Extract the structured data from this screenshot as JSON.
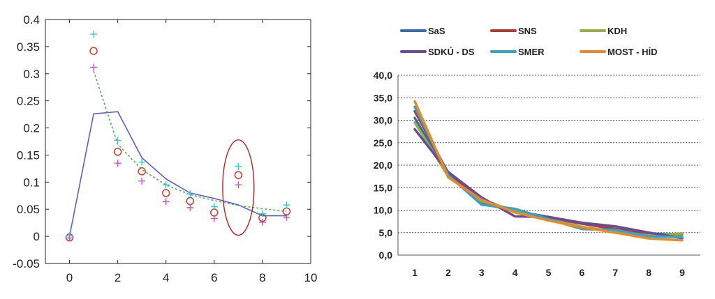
{
  "chart_data": [
    {
      "type": "scatter",
      "title": "",
      "xlabel": "",
      "ylabel": "",
      "xlim": [
        -1,
        10
      ],
      "ylim": [
        -0.05,
        0.4
      ],
      "xticks": [
        "0",
        "2",
        "4",
        "6",
        "8",
        "10"
      ],
      "yticks": [
        "-0.05",
        "0",
        "0.05",
        "0.1",
        "0.15",
        "0.2",
        "0.25",
        "0.3",
        "0.35",
        "0.4"
      ],
      "grid": false,
      "colors": {
        "solid": "#5a5fd0",
        "dashed": "#44aa44",
        "circle": "#cc3b2c",
        "plus_cyan": "#33cccc",
        "plus_magenta": "#d24ad2",
        "ellipse": "#b22222"
      },
      "series": [
        {
          "style": "solid-line",
          "x": [
            0,
            1,
            2,
            3,
            4,
            5,
            6,
            7,
            8,
            9
          ],
          "y": [
            0,
            0.226,
            0.23,
            0.145,
            0.106,
            0.08,
            0.07,
            0.058,
            0.038,
            0.038
          ]
        },
        {
          "style": "dashed-line",
          "x": [
            1,
            2,
            3,
            4,
            5,
            6,
            7,
            8,
            9
          ],
          "y": [
            0.305,
            0.17,
            0.123,
            0.095,
            0.077,
            0.066,
            0.057,
            0.051,
            0.046
          ]
        },
        {
          "style": "circle",
          "x": [
            0,
            1,
            2,
            3,
            4,
            5,
            6,
            7,
            8,
            9
          ],
          "y": [
            -0.002,
            0.342,
            0.156,
            0.12,
            0.08,
            0.065,
            0.044,
            0.113,
            0.034,
            0.046
          ]
        },
        {
          "style": "plus-cyan",
          "x": [
            0,
            1,
            2,
            3,
            4,
            5,
            6,
            7,
            8,
            9
          ],
          "y": [
            0.001,
            0.373,
            0.177,
            0.137,
            0.095,
            0.078,
            0.055,
            0.129,
            0.042,
            0.058
          ]
        },
        {
          "style": "plus-magenta",
          "x": [
            0,
            1,
            2,
            3,
            4,
            5,
            6,
            7,
            8,
            9
          ],
          "y": [
            -0.003,
            0.312,
            0.135,
            0.102,
            0.064,
            0.053,
            0.033,
            0.095,
            0.026,
            0.035
          ]
        }
      ],
      "annotations": [
        {
          "type": "ellipse",
          "x_center": 7,
          "y_center": 0.09,
          "x_radius": 0.65,
          "y_radius": 0.088
        }
      ]
    },
    {
      "type": "line",
      "title": "",
      "xlabel": "",
      "ylabel": "",
      "categories": [
        "1",
        "2",
        "3",
        "4",
        "5",
        "6",
        "7",
        "8",
        "9"
      ],
      "ylim": [
        0,
        40
      ],
      "yticks": [
        "0,0",
        "5,0",
        "10,0",
        "15,0",
        "20,0",
        "25,0",
        "30,0",
        "35,0",
        "40,0"
      ],
      "grid": true,
      "legend_position": "top",
      "series": [
        {
          "name": "SaS",
          "color": "#3b6ea8",
          "values": [
            30.5,
            18.0,
            11.5,
            9.8,
            8.5,
            7.0,
            5.8,
            4.8,
            4.6
          ]
        },
        {
          "name": "SNS",
          "color": "#b03a36",
          "values": [
            32.0,
            18.3,
            12.5,
            9.5,
            8.3,
            7.0,
            5.8,
            4.8,
            3.8
          ]
        },
        {
          "name": "KDH",
          "color": "#8fb04a",
          "values": [
            29.5,
            17.5,
            12.0,
            10.0,
            8.0,
            6.3,
            5.2,
            4.4,
            4.8
          ]
        },
        {
          "name": "SDKÚ - DS",
          "color": "#6a4c93",
          "values": [
            28.0,
            18.5,
            12.8,
            8.6,
            8.5,
            7.2,
            6.4,
            5.0,
            3.8
          ]
        },
        {
          "name": "SMER",
          "color": "#3aa3c0",
          "values": [
            33.0,
            17.8,
            11.2,
            10.3,
            8.0,
            5.8,
            5.6,
            4.2,
            4.0
          ]
        },
        {
          "name": "MOST - HÍD",
          "color": "#e8892c",
          "values": [
            34.2,
            17.3,
            12.3,
            9.5,
            7.7,
            6.2,
            5.0,
            3.7,
            3.3
          ]
        }
      ]
    }
  ]
}
